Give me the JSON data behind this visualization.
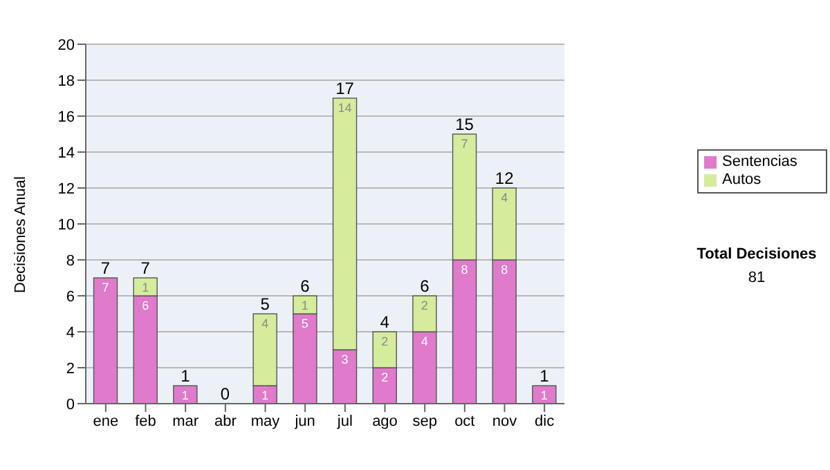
{
  "chart_data": {
    "type": "bar",
    "stacked": true,
    "ylabel": "Decisiones Anual",
    "categories": [
      "ene",
      "feb",
      "mar",
      "abr",
      "may",
      "jun",
      "jul",
      "ago",
      "sep",
      "oct",
      "nov",
      "dic"
    ],
    "series": [
      {
        "name": "Sentencias",
        "color": "#e07acb",
        "values": [
          7,
          6,
          1,
          0,
          1,
          5,
          3,
          2,
          4,
          8,
          8,
          1
        ],
        "value_labels": [
          "7",
          "6",
          "1",
          null,
          "1",
          "5",
          "3",
          "2",
          "4",
          "8",
          "8",
          "1"
        ]
      },
      {
        "name": "Autos",
        "color": "#d5ec9c",
        "values": [
          0,
          1,
          0,
          0,
          4,
          1,
          14,
          2,
          2,
          7,
          4,
          0
        ],
        "value_labels": [
          null,
          "1",
          null,
          null,
          "4",
          "1",
          "14",
          "2",
          "2",
          "7",
          "4",
          null
        ]
      }
    ],
    "totals": [
      "7",
      "7",
      "1",
      "0",
      "5",
      "6",
      "17",
      "4",
      "6",
      "15",
      "12",
      "1"
    ],
    "ylim": [
      0,
      20
    ],
    "yticks": [
      0,
      2,
      4,
      6,
      8,
      10,
      12,
      14,
      16,
      18,
      20
    ],
    "grid": "y",
    "legend": "right",
    "annotations": [
      "Total Decisiones",
      "81"
    ]
  }
}
